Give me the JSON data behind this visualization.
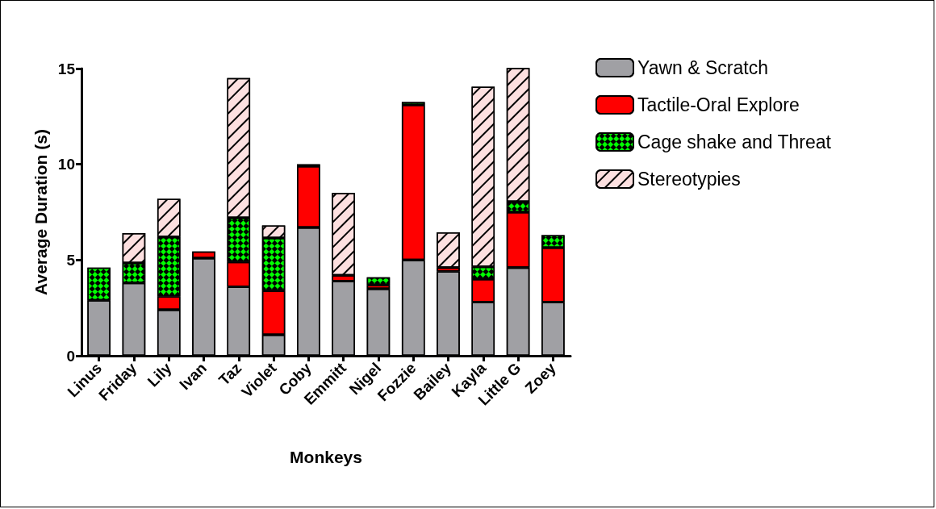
{
  "chart_data": {
    "type": "bar",
    "stacked": true,
    "xlabel": "Monkeys",
    "ylabel": "Average Duration (s)",
    "categories": [
      "Linus",
      "Friday",
      "Lily",
      "Ivan",
      "Taz",
      "Violet",
      "Coby",
      "Emmitt",
      "Nigel",
      "Fozzie",
      "Bailey",
      "Kayla",
      "Little G",
      "Zoey"
    ],
    "series": [
      {
        "name": "Yawn & Scratch",
        "color": "#a0a0a4",
        "values": [
          2.9,
          3.8,
          2.4,
          5.1,
          3.6,
          1.1,
          6.7,
          3.9,
          3.5,
          5.0,
          4.4,
          2.8,
          4.6,
          2.8
        ]
      },
      {
        "name": "Tactile-Oral Explore",
        "color": "#ff0000",
        "values": [
          0,
          0,
          0.7,
          0.35,
          1.3,
          2.3,
          3.2,
          0.3,
          0.2,
          8.1,
          0.2,
          1.2,
          2.9,
          2.85
        ]
      },
      {
        "name": "Cage shake and Threat",
        "color": "#00ff00",
        "values": [
          1.7,
          1.05,
          3.1,
          0,
          2.3,
          2.75,
          0.1,
          0,
          0.4,
          0.15,
          0,
          0.65,
          0.55,
          0.65
        ]
      },
      {
        "name": "Stereotypies",
        "color": "#fde0e0",
        "values": [
          0,
          1.55,
          2.0,
          0,
          7.3,
          0.65,
          0,
          4.3,
          0,
          0,
          1.85,
          9.4,
          7.0,
          0
        ]
      }
    ],
    "ylim": [
      0,
      15
    ],
    "yticks": [
      0,
      5,
      10,
      15
    ],
    "grid": false,
    "legend": "top right"
  }
}
